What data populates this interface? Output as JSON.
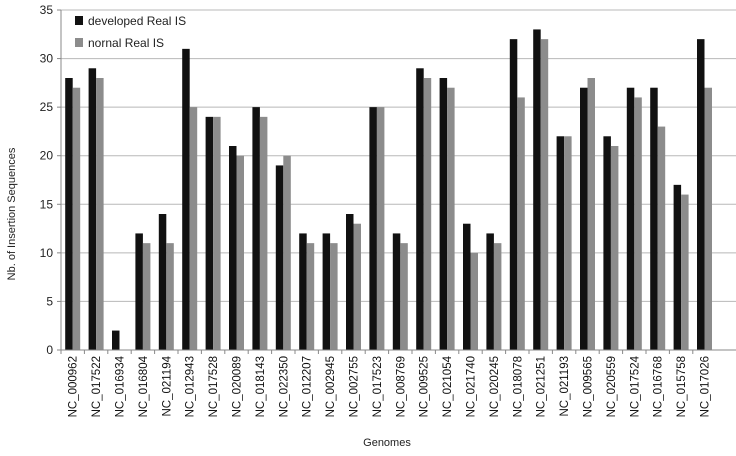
{
  "chart_data": {
    "type": "bar",
    "xlabel": "Genomes",
    "ylabel": "Nb. of Insertion Sequences",
    "ylim": [
      0,
      35
    ],
    "yticks": [
      0,
      5,
      10,
      15,
      20,
      25,
      30,
      35
    ],
    "grid": true,
    "legend_position": "top-left",
    "categories": [
      "NC_000962",
      "NC_017522",
      "NC_016934",
      "NC_016804",
      "NC_021194",
      "NC_012943",
      "NC_017528",
      "NC_020089",
      "NC_018143",
      "NC_022350",
      "NC_012207",
      "NC_002945",
      "NC_002755",
      "NC_017523",
      "NC_008769",
      "NC_009525",
      "NC_021054",
      "NC_021740",
      "NC_020245",
      "NC_018078",
      "NC_021251",
      "NC_021193",
      "NC_009565",
      "NC_020559",
      "NC_017524",
      "NC_016768",
      "NC_015758",
      "NC_017026"
    ],
    "series": [
      {
        "name": "developed Real IS",
        "color": "#111111",
        "values": [
          28,
          29,
          2,
          12,
          14,
          31,
          24,
          21,
          25,
          19,
          12,
          12,
          14,
          25,
          12,
          29,
          28,
          13,
          12,
          32,
          33,
          22,
          27,
          22,
          27,
          27,
          17,
          32
        ]
      },
      {
        "name": "nornal Real IS",
        "color": "#8c8c8c",
        "values": [
          27,
          28,
          0,
          11,
          11,
          25,
          24,
          20,
          24,
          20,
          11,
          11,
          13,
          25,
          11,
          28,
          27,
          10,
          11,
          26,
          32,
          22,
          28,
          21,
          26,
          23,
          16,
          27
        ]
      }
    ]
  }
}
